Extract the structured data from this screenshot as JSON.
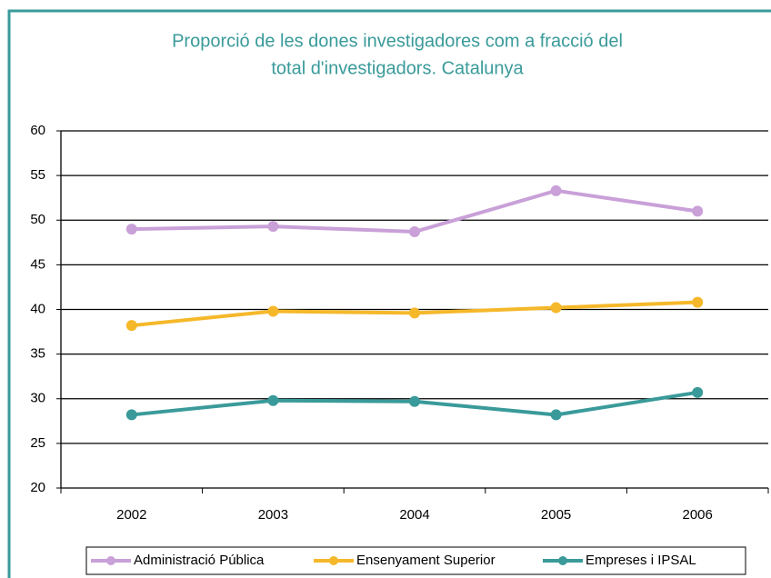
{
  "chart_data": {
    "type": "line",
    "title": [
      "Proporció de les dones investigadores com a fracció del",
      "total d'investigadors. Catalunya"
    ],
    "categories": [
      "2002",
      "2003",
      "2004",
      "2005",
      "2006"
    ],
    "series": [
      {
        "name": "Administració Pública",
        "color": "#c9a0d8",
        "values": [
          49,
          49.3,
          48.7,
          53.3,
          51
        ]
      },
      {
        "name": "Ensenyament Superior",
        "color": "#f5b82a",
        "values": [
          38.2,
          39.8,
          39.6,
          40.2,
          40.8
        ]
      },
      {
        "name": "Empreses i IPSAL",
        "color": "#3a9a9a",
        "values": [
          28.2,
          29.8,
          29.7,
          28.2,
          30.7
        ]
      }
    ],
    "ylim": [
      20,
      60
    ],
    "yticks": [
      20,
      25,
      30,
      35,
      40,
      45,
      50,
      55,
      60
    ],
    "grid": true,
    "legend": "bottom"
  }
}
